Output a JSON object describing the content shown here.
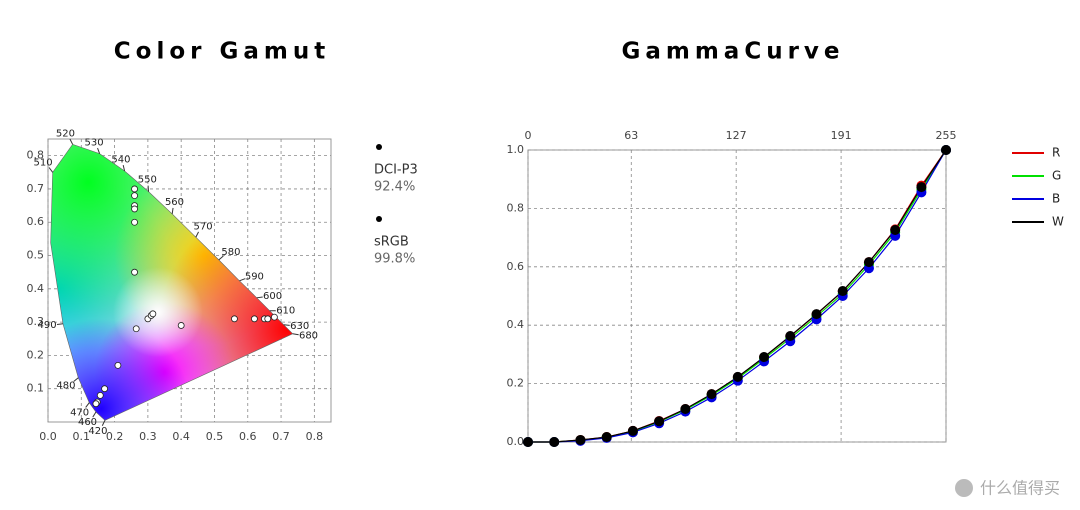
{
  "chart_data": [
    {
      "type": "cie",
      "title": "Color Gamut",
      "xlim": [
        0,
        0.85
      ],
      "ylim": [
        0,
        0.85
      ],
      "xticks": [
        {
          "value": 0,
          "label": "0.0"
        },
        0.1,
        0.2,
        0.3,
        0.4,
        0.5,
        0.6,
        0.7,
        0.8
      ],
      "yticks": [
        0.1,
        0.2,
        0.3,
        0.4,
        0.5,
        0.6,
        0.7,
        0.8
      ],
      "grid": true,
      "locus": {
        "wavelengths": [
          420,
          460,
          470,
          480,
          490,
          null,
          510,
          520,
          530,
          540,
          550,
          560,
          570,
          580,
          590,
          600,
          610,
          630,
          680
        ],
        "x": [
          0.171,
          0.144,
          0.124,
          0.091,
          0.045,
          0.008,
          0.014,
          0.074,
          0.155,
          0.23,
          0.302,
          0.373,
          0.444,
          0.513,
          0.575,
          0.627,
          0.666,
          0.708,
          0.735
        ],
        "y": [
          0.005,
          0.03,
          0.058,
          0.133,
          0.295,
          0.538,
          0.75,
          0.834,
          0.806,
          0.754,
          0.692,
          0.625,
          0.555,
          0.487,
          0.424,
          0.373,
          0.334,
          0.292,
          0.265
        ]
      },
      "points": {
        "x": [
          0.26,
          0.26,
          0.26,
          0.26,
          0.26,
          0.26,
          0.265,
          0.21,
          0.3,
          0.31,
          0.315,
          0.4,
          0.56,
          0.62,
          0.65,
          0.66,
          0.68,
          0.17,
          0.157,
          0.148,
          0.144
        ],
        "y": [
          0.7,
          0.68,
          0.65,
          0.64,
          0.6,
          0.45,
          0.28,
          0.17,
          0.31,
          0.32,
          0.325,
          0.29,
          0.31,
          0.31,
          0.31,
          0.31,
          0.315,
          0.1,
          0.08,
          0.06,
          0.055
        ],
        "color": "#ffffff"
      },
      "standards": {
        "names": [
          "DCI-P3",
          "sRGB"
        ],
        "values": [
          92.4,
          99.8
        ],
        "value_labels": [
          "92.4%",
          "99.8%"
        ]
      }
    },
    {
      "type": "line",
      "title": "GammaCurve",
      "xlim": [
        0,
        255
      ],
      "ylim": [
        0,
        1
      ],
      "xticks": [
        0,
        63,
        127,
        191,
        255
      ],
      "yticks": [
        {
          "value": 0,
          "label": "0.0"
        },
        0.2,
        0.4,
        0.6,
        0.8,
        {
          "value": 1,
          "label": "1.0"
        }
      ],
      "grid": true,
      "legend": "right",
      "x": [
        0,
        16,
        32,
        48,
        64,
        80,
        96,
        112,
        128,
        144,
        160,
        176,
        192,
        208,
        224,
        240,
        255
      ],
      "series": [
        {
          "name": "R",
          "color": "#e00000",
          "values": [
            0,
            0,
            0.007,
            0.017,
            0.038,
            0.072,
            0.113,
            0.164,
            0.222,
            0.29,
            0.362,
            0.437,
            0.516,
            0.616,
            0.728,
            0.878,
            1
          ]
        },
        {
          "name": "G",
          "color": "#00e000",
          "values": [
            0,
            0,
            0.006,
            0.016,
            0.036,
            0.069,
            0.11,
            0.16,
            0.218,
            0.285,
            0.355,
            0.43,
            0.508,
            0.607,
            0.718,
            0.865,
            1
          ]
        },
        {
          "name": "B",
          "color": "#0000e0",
          "values": [
            0,
            0,
            0.004,
            0.014,
            0.033,
            0.064,
            0.104,
            0.153,
            0.21,
            0.276,
            0.345,
            0.42,
            0.5,
            0.595,
            0.706,
            0.855,
            1
          ]
        },
        {
          "name": "W",
          "color": "#000000",
          "values": [
            0,
            0,
            0.007,
            0.017,
            0.038,
            0.071,
            0.113,
            0.164,
            0.223,
            0.291,
            0.363,
            0.438,
            0.517,
            0.616,
            0.726,
            0.873,
            1
          ]
        }
      ]
    }
  ],
  "watermark": "什么值得买"
}
